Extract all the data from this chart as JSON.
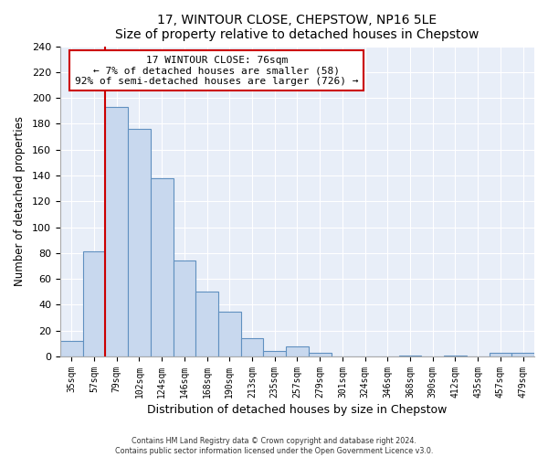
{
  "title": "17, WINTOUR CLOSE, CHEPSTOW, NP16 5LE",
  "subtitle": "Size of property relative to detached houses in Chepstow",
  "xlabel": "Distribution of detached houses by size in Chepstow",
  "ylabel": "Number of detached properties",
  "bar_labels": [
    "35sqm",
    "57sqm",
    "79sqm",
    "102sqm",
    "124sqm",
    "146sqm",
    "168sqm",
    "190sqm",
    "213sqm",
    "235sqm",
    "257sqm",
    "279sqm",
    "301sqm",
    "324sqm",
    "346sqm",
    "368sqm",
    "390sqm",
    "412sqm",
    "435sqm",
    "457sqm",
    "479sqm"
  ],
  "bar_values": [
    12,
    81,
    193,
    176,
    138,
    74,
    50,
    35,
    14,
    4,
    8,
    3,
    0,
    0,
    0,
    1,
    0,
    1,
    0,
    3,
    3
  ],
  "bar_color": "#c8d8ee",
  "bar_edge_color": "#6090c0",
  "property_line_x": 2,
  "line_color": "#cc0000",
  "ylim": [
    0,
    240
  ],
  "yticks": [
    0,
    20,
    40,
    60,
    80,
    100,
    120,
    140,
    160,
    180,
    200,
    220,
    240
  ],
  "annotation_line1": "17 WINTOUR CLOSE: 76sqm",
  "annotation_line2": "← 7% of detached houses are smaller (58)",
  "annotation_line3": "92% of semi-detached houses are larger (726) →",
  "footer1": "Contains HM Land Registry data © Crown copyright and database right 2024.",
  "footer2": "Contains public sector information licensed under the Open Government Licence v3.0.",
  "background_color": "#ffffff",
  "plot_bg_color": "#e8eef8",
  "grid_color": "#ffffff"
}
